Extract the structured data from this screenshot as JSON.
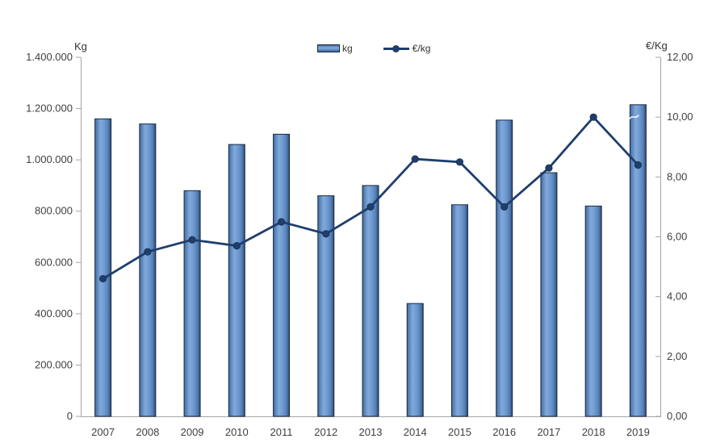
{
  "chart_data": {
    "type": "combo-bar-line",
    "title": "",
    "categories": [
      "2007",
      "2008",
      "2009",
      "2010",
      "2011",
      "2012",
      "2013",
      "2014",
      "2015",
      "2016",
      "2017",
      "2018",
      "2019"
    ],
    "series": [
      {
        "name": "kg",
        "type": "bar",
        "axis": "left",
        "values": [
          1160000,
          1140000,
          880000,
          1060000,
          1100000,
          860000,
          900000,
          440000,
          825000,
          1155000,
          950000,
          820000,
          1215000
        ]
      },
      {
        "name": "€/kg",
        "type": "line",
        "axis": "right",
        "values": [
          4.6,
          5.5,
          5.9,
          5.7,
          6.5,
          6.1,
          7.0,
          8.6,
          8.5,
          7.0,
          8.3,
          10.0,
          8.4
        ]
      }
    ],
    "left_axis": {
      "title": "Kg",
      "min": 0,
      "max": 1400000,
      "tick_step": 200000,
      "tick_labels_top_to_bottom": [
        "1.400.000",
        "1.200.000",
        "1.000.000",
        "800.000",
        "600.000",
        "400.000",
        "200.000",
        "0"
      ]
    },
    "right_axis": {
      "title": "€/Kg",
      "min": 0,
      "max": 12,
      "tick_step": 2,
      "tick_labels_top_to_bottom": [
        "12,00",
        "10,00",
        "8,00",
        "6,00",
        "4,00",
        "2,00",
        "0,00"
      ]
    },
    "legend": {
      "position": "top-center",
      "bar_label": "kg",
      "line_label": "€/kg"
    },
    "grid": "off",
    "colors": {
      "bar_fill_dark": "#40699e",
      "bar_fill_light": "#82a9da",
      "bar_fill_mid": "#6e9bd1",
      "bar_fill_shadow": "#2e4a72",
      "bar_edge": "#1c2b40",
      "line": "#1f3e6d",
      "axis": "#a6a6a6",
      "text": "#404040"
    }
  }
}
